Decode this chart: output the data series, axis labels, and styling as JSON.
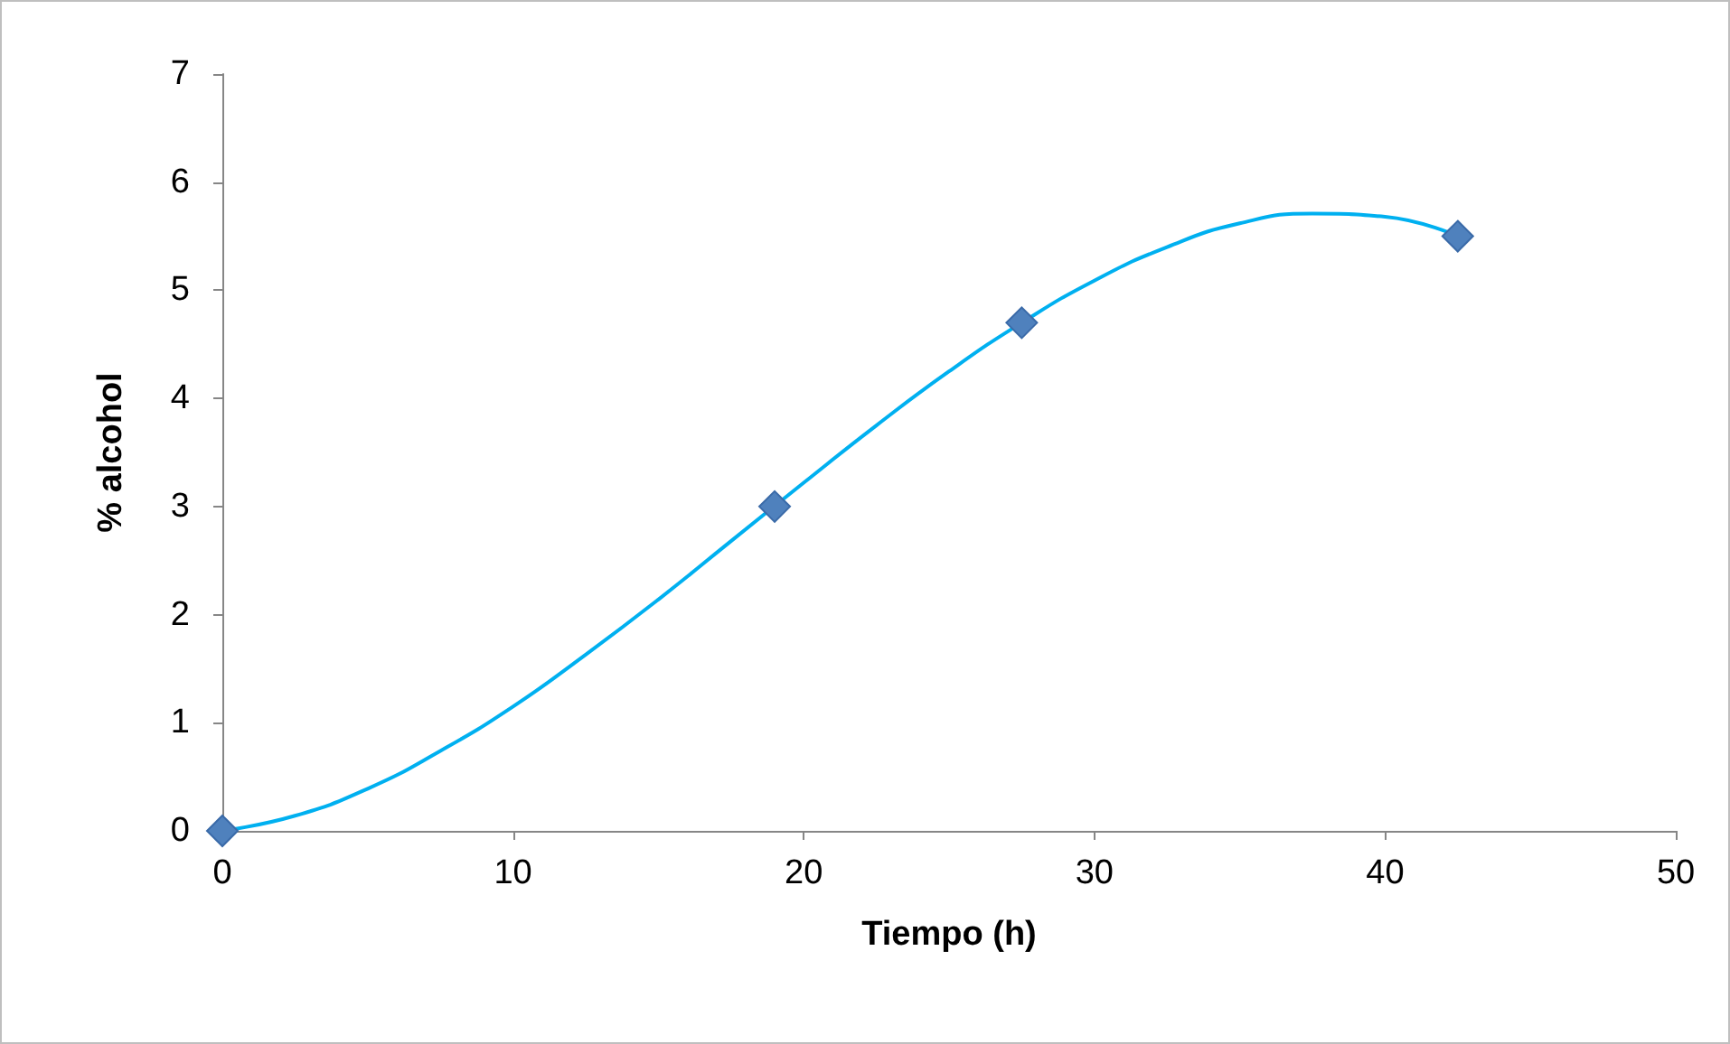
{
  "chart_data": {
    "type": "scatter",
    "xlabel": "Tiempo (h)",
    "ylabel": "% alcohol",
    "xlim": [
      0,
      50
    ],
    "xticks": [
      0,
      10,
      20,
      30,
      40,
      50
    ],
    "ylim": [
      0,
      7
    ],
    "yticks": [
      0,
      1,
      2,
      3,
      4,
      5,
      6,
      7
    ],
    "grid": false,
    "series": [
      {
        "type": "line",
        "color": "#00b0f0",
        "marker": "none",
        "line_style": "solid",
        "x": [
          0,
          2.5,
          5,
          7.5,
          10,
          12.5,
          15,
          17.5,
          20,
          22.5,
          25,
          27.5,
          30,
          32.5,
          35,
          37.5,
          40,
          42.5
        ],
        "values": [
          0,
          0.14,
          0.39,
          0.74,
          1.15,
          1.63,
          2.14,
          2.68,
          3.22,
          3.75,
          4.25,
          4.7,
          5.09,
          5.4,
          5.62,
          5.71,
          5.68,
          5.5
        ]
      },
      {
        "color": "#4f81bd",
        "marker": "diamond",
        "x": [
          0,
          19,
          27.5,
          42.5
        ],
        "values": [
          0,
          3,
          4.7,
          5.5
        ]
      }
    ]
  }
}
